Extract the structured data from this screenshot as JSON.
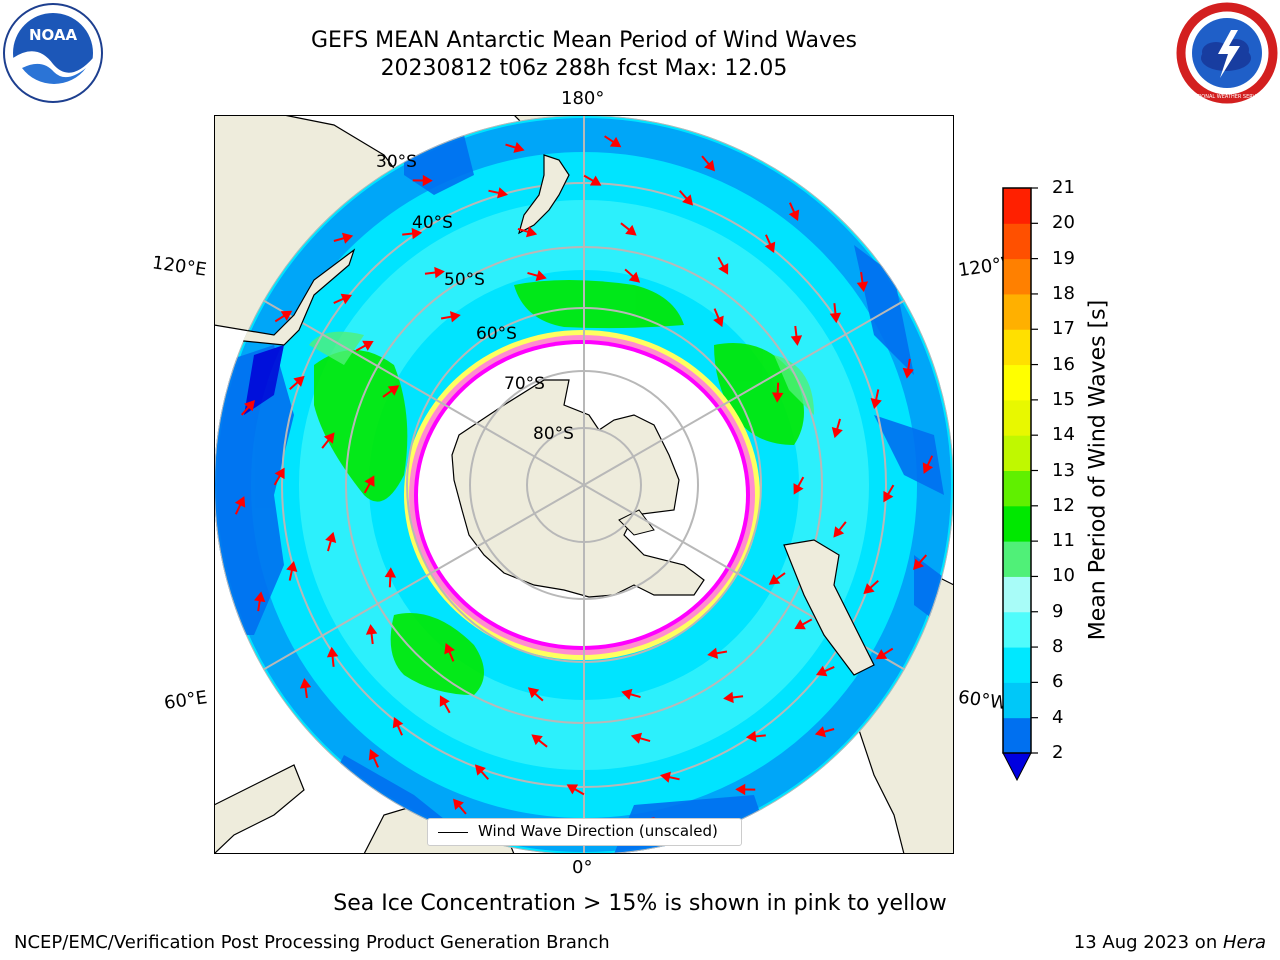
{
  "title": {
    "line1": "GEFS MEAN Antarctic Mean Period of Wind Waves",
    "line2": "20230812 t06z 288h fcst   Max: 12.05"
  },
  "logos": {
    "left_text": "NOAA",
    "right_text": "NATIONAL WEATHER SERVICE"
  },
  "map": {
    "longitude_labels": [
      "180°",
      "120°E",
      "120°W",
      "60°E",
      "60°W",
      "0°"
    ],
    "latitude_labels": [
      "30°S",
      "40°S",
      "50°S",
      "60°S",
      "70°S",
      "80°S"
    ],
    "legend_label": "Wind Wave Direction (unscaled)",
    "land_color": "#eeecdc",
    "ice_color_range": [
      "#ff00ff",
      "#ffff60"
    ],
    "arrow_color": "#ff0000"
  },
  "colorbar": {
    "label": "Mean Period of Wind Waves [s]",
    "ticks": [
      "21",
      "20",
      "19",
      "18",
      "17",
      "16",
      "15",
      "14",
      "13",
      "12",
      "11",
      "10",
      "9",
      "8",
      "6",
      "4",
      "2"
    ],
    "colors": [
      "#0000e0",
      "#0070f0",
      "#00c8f8",
      "#00e8ff",
      "#50fcfc",
      "#a8fcf8",
      "#50f078",
      "#00e800",
      "#60f000",
      "#c0f800",
      "#e8f800",
      "#ffff00",
      "#ffe000",
      "#ffb000",
      "#ff8000",
      "#ff5000",
      "#ff2000",
      "#ff0000"
    ]
  },
  "ice_note": "Sea Ice Concentration > 15% is shown in pink to yellow",
  "footer": {
    "left": "NCEP/EMC/Verification Post Processing Product Generation Branch",
    "right_date": "13 Aug 2023 on ",
    "right_machine": "Hera"
  }
}
